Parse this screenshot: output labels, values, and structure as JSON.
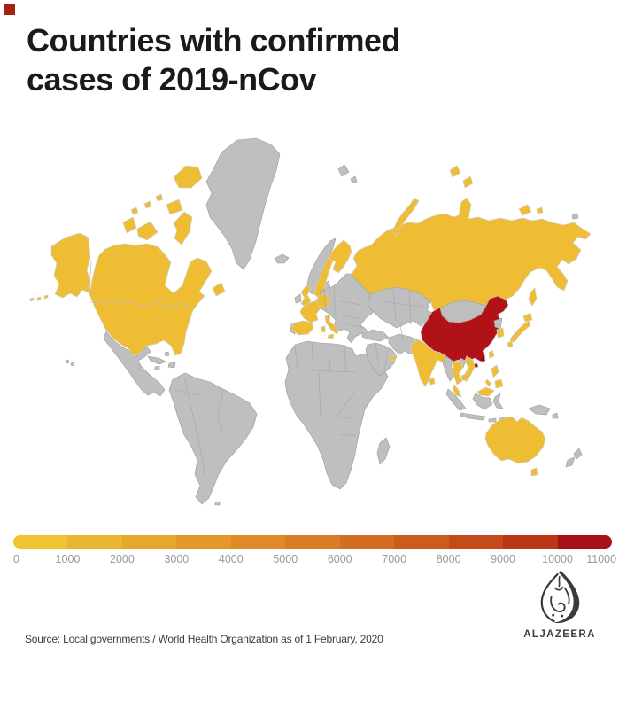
{
  "brand": {
    "accent_color": "#a82015",
    "logo_text": "ALJAZEERA"
  },
  "header": {
    "title_line1": "Countries with confirmed",
    "title_line2": "cases of 2019-nCov"
  },
  "map": {
    "colors": {
      "no_cases": "#bfbfbf",
      "affected": "#efbd33",
      "highest": "#b01218",
      "highest_dark": "#8c0d12",
      "border": "#9a9a9a",
      "ocean": "#ffffff"
    },
    "map_data": {
      "type": "choropleth",
      "scale_min": 0,
      "scale_max": 11000,
      "highest_country": "China",
      "affected_countries": [
        "Canada",
        "United States",
        "Russia",
        "United Kingdom",
        "France",
        "Spain",
        "Germany",
        "Italy",
        "Sweden",
        "Finland",
        "United Arab Emirates",
        "India",
        "Nepal",
        "Sri Lanka",
        "Thailand",
        "Vietnam",
        "Cambodia",
        "Malaysia",
        "Philippines",
        "Taiwan",
        "South Korea",
        "Japan",
        "Australia"
      ],
      "no_case_examples": [
        "Greenland",
        "Mexico",
        "South America",
        "Africa",
        "Eastern Europe",
        "Middle East",
        "Mongolia",
        "Indonesia",
        "New Zealand"
      ]
    }
  },
  "legend": {
    "ticks": [
      "0",
      "1000",
      "2000",
      "3000",
      "4000",
      "5000",
      "6000",
      "7000",
      "8000",
      "9000",
      "10000",
      "11000"
    ],
    "colors": [
      "#eec433",
      "#eab52f",
      "#e7a72c",
      "#e39829",
      "#de8a26",
      "#d97c24",
      "#d36d21",
      "#cc5c1e",
      "#c54a1b",
      "#bb3517",
      "#a81115"
    ],
    "label_color": "#999999"
  },
  "footer": {
    "source": "Source: Local governments / World Health Organization as of 1 February, 2020"
  }
}
